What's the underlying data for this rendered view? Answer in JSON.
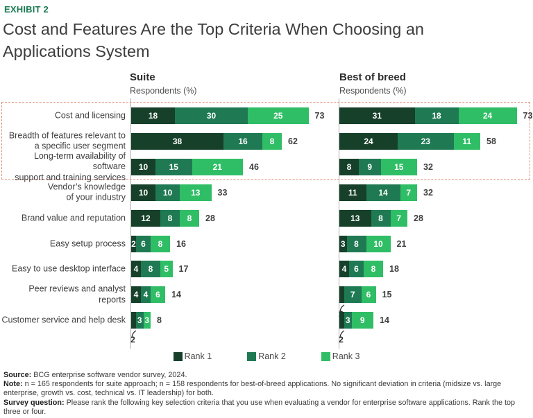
{
  "exhibit_label": "EXHIBIT 2",
  "title": "Cost and Features Are the Top Criteria When Choosing an\nApplications System",
  "colors": {
    "rank1": "#16402A",
    "rank2": "#1F7A54",
    "rank3": "#2FBE66",
    "highlight_dash": "#DE957C",
    "axis": "#ADADAD",
    "exhibit_green": "#1A7A52"
  },
  "legend": [
    {
      "label": "Rank 1",
      "color": "#16402A"
    },
    {
      "label": "Rank 2",
      "color": "#1F7A54"
    },
    {
      "label": "Rank 3",
      "color": "#2FBE66"
    }
  ],
  "chart_data": {
    "type": "bar",
    "orientation": "horizontal",
    "stacked": true,
    "unit": "Respondents (%)",
    "xlim": [
      0,
      80
    ],
    "grid": false,
    "legend_position": "bottom",
    "highlighted_top_rows": 3,
    "categories": [
      "Cost and licensing",
      "Breadth of features relevant to\na specific user segment",
      "Long-term availability of software\nsupport and training services",
      "Vendor’s knowledge\nof your industry",
      "Brand value and reputation",
      "Easy setup process",
      "Easy to use desktop interface",
      "Peer reviews and analyst reports",
      "Customer service and help desk"
    ],
    "charts": [
      {
        "name": "Suite",
        "subtitle": "Respondents (%)",
        "series": [
          {
            "name": "Rank 1",
            "values": [
              18,
              38,
              10,
              10,
              12,
              2,
              4,
              4,
              2
            ]
          },
          {
            "name": "Rank 2",
            "values": [
              30,
              16,
              15,
              10,
              8,
              6,
              8,
              4,
              3
            ]
          },
          {
            "name": "Rank 3",
            "values": [
              25,
              8,
              21,
              13,
              8,
              8,
              5,
              6,
              3
            ]
          }
        ],
        "totals": [
          73,
          62,
          46,
          33,
          28,
          16,
          17,
          14,
          8
        ],
        "callouts": [
          {
            "row": 8,
            "series": 0
          }
        ]
      },
      {
        "name": "Best of breed",
        "subtitle": "Respondents (%)",
        "series": [
          {
            "name": "Rank 1",
            "values": [
              31,
              24,
              8,
              11,
              13,
              3,
              4,
              2,
              2
            ]
          },
          {
            "name": "Rank 2",
            "values": [
              18,
              23,
              9,
              14,
              8,
              8,
              6,
              7,
              3
            ]
          },
          {
            "name": "Rank 3",
            "values": [
              24,
              11,
              15,
              7,
              7,
              10,
              8,
              6,
              9
            ]
          }
        ],
        "totals": [
          73,
          58,
          32,
          32,
          28,
          21,
          18,
          15,
          14
        ],
        "callouts": [
          {
            "row": 7,
            "series": 0
          },
          {
            "row": 8,
            "series": 0
          }
        ]
      }
    ]
  },
  "footer": {
    "source_label": "Source:",
    "source_text": " BCG enterprise software vendor survey, 2024.",
    "note_label": "Note:",
    "note_text": " n = 165 respondents for suite approach; n = 158 respondents for best-of-breed applications. No significant deviation in criteria (midsize vs. large enterprise, growth vs. cost, technical vs. IT leadership) for both.",
    "survey_label": "Survey question:",
    "survey_text": " Please rank the following key selection criteria that you use when evaluating a vendor for enterprise software applications. Rank the top three or four."
  }
}
